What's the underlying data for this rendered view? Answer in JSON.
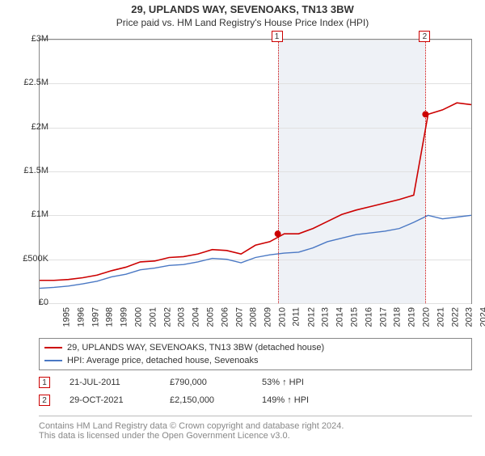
{
  "title": "29, UPLANDS WAY, SEVENOAKS, TN13 3BW",
  "subtitle": "Price paid vs. HM Land Registry's House Price Index (HPI)",
  "chart": {
    "type": "line",
    "background_color": "#ffffff",
    "grid_color": "#e0e0e0",
    "shaded_band_color": "#eef1f6",
    "y": {
      "min": 0,
      "max": 3000000,
      "step": 500000,
      "labels": [
        "£0",
        "£500K",
        "£1M",
        "£1.5M",
        "£2M",
        "£2.5M",
        "£3M"
      ]
    },
    "x": {
      "years": [
        1995,
        1996,
        1997,
        1998,
        1999,
        2000,
        2001,
        2002,
        2003,
        2004,
        2005,
        2006,
        2007,
        2008,
        2009,
        2010,
        2011,
        2012,
        2013,
        2014,
        2015,
        2016,
        2017,
        2018,
        2019,
        2020,
        2021,
        2022,
        2023,
        2024,
        2025
      ]
    },
    "series": [
      {
        "name": "29, UPLANDS WAY, SEVENOAKS, TN13 3BW (detached house)",
        "color": "#cc0000",
        "line_width": 1.6,
        "values": [
          260000,
          260000,
          270000,
          290000,
          320000,
          370000,
          410000,
          470000,
          480000,
          520000,
          530000,
          560000,
          610000,
          600000,
          560000,
          660000,
          700000,
          790000,
          790000,
          850000,
          930000,
          1010000,
          1060000,
          1100000,
          1140000,
          1180000,
          1230000,
          2150000,
          2200000,
          2280000,
          2260000
        ]
      },
      {
        "name": "HPI: Average price, detached house, Sevenoaks",
        "color": "#4a78c4",
        "line_width": 1.4,
        "values": [
          170000,
          180000,
          195000,
          220000,
          250000,
          300000,
          330000,
          380000,
          400000,
          430000,
          440000,
          470000,
          510000,
          500000,
          460000,
          520000,
          550000,
          570000,
          580000,
          630000,
          700000,
          740000,
          780000,
          800000,
          820000,
          850000,
          920000,
          1000000,
          960000,
          980000,
          1000000
        ]
      }
    ],
    "markers": [
      {
        "id": "1",
        "year": 2011.55,
        "value": 790000
      },
      {
        "id": "2",
        "year": 2021.82,
        "value": 2150000
      }
    ],
    "shaded_band": {
      "from_year": 2011.55,
      "to_year": 2021.82
    }
  },
  "legend": {
    "items": [
      {
        "label": "29, UPLANDS WAY, SEVENOAKS, TN13 3BW (detached house)",
        "color": "#cc0000"
      },
      {
        "label": "HPI: Average price, detached house, Sevenoaks",
        "color": "#4a78c4"
      }
    ]
  },
  "events": [
    {
      "id": "1",
      "date": "21-JUL-2011",
      "price": "£790,000",
      "hpi": "53% ↑ HPI"
    },
    {
      "id": "2",
      "date": "29-OCT-2021",
      "price": "£2,150,000",
      "hpi": "149% ↑ HPI"
    }
  ],
  "footnote": {
    "line1": "Contains HM Land Registry data © Crown copyright and database right 2024.",
    "line2": "This data is licensed under the Open Government Licence v3.0."
  }
}
